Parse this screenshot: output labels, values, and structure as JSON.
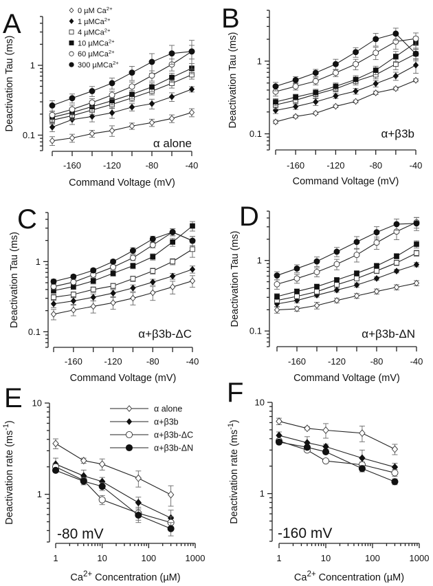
{
  "figure": {
    "panels_order": [
      "A",
      "B",
      "C",
      "D",
      "E",
      "F"
    ]
  },
  "legend_tau": {
    "entries": [
      {
        "key": "0",
        "marker": "open-diamond",
        "label": "0 µM Ca",
        "sup": "2+"
      },
      {
        "key": "1",
        "marker": "filled-diamond",
        "label": "1 µMCa",
        "sup": "2+"
      },
      {
        "key": "4",
        "marker": "open-square",
        "label": "4 µMCa",
        "sup": "2+"
      },
      {
        "key": "10",
        "marker": "filled-square",
        "label": "10 µMCa",
        "sup": "2+"
      },
      {
        "key": "60",
        "marker": "open-circle",
        "label": "60 µMCa",
        "sup": "2+"
      },
      {
        "key": "300",
        "marker": "filled-circle",
        "label": "300 µMCa",
        "sup": "2+"
      }
    ]
  },
  "legend_rate": {
    "entries": [
      {
        "key": "alpha",
        "marker": "open-diamond",
        "label": "α alone"
      },
      {
        "key": "b3b",
        "marker": "filled-diamond",
        "label": "α+β3b"
      },
      {
        "key": "dC",
        "marker": "open-circle",
        "label": "α+β3b-ΔC"
      },
      {
        "key": "dN",
        "marker": "filled-circle",
        "label": "α+β3b-ΔN"
      }
    ]
  },
  "chart_data": [
    {
      "panel": "A",
      "type": "line",
      "annotation": "α alone",
      "xlabel": "Command Voltage (mV)",
      "ylabel": "Deactivation Tau (ms)",
      "xscale": "linear",
      "yscale": "log",
      "xlim": [
        -180,
        -40
      ],
      "ylim": [
        0.06,
        5
      ],
      "xticks": [
        -160,
        -120,
        -80,
        -40
      ],
      "xminor": [
        -180,
        -140,
        -100,
        -60
      ],
      "yticks": [
        0.1,
        1
      ],
      "grid": false,
      "legend": "top-left",
      "x": [
        -180,
        -160,
        -140,
        -120,
        -100,
        -80,
        -60,
        -40
      ],
      "series": [
        {
          "name": "0 µM Ca2+",
          "marker": "open-diamond",
          "values": [
            0.083,
            0.091,
            0.105,
            0.116,
            0.135,
            0.151,
            0.173,
            0.211
          ],
          "err": [
            0.012,
            0.012,
            0.012,
            0.02,
            0.014,
            0.018,
            0.022,
            0.028
          ]
        },
        {
          "name": "1 µM Ca2+",
          "marker": "filled-diamond",
          "values": [
            0.13,
            0.167,
            0.185,
            0.209,
            0.252,
            0.282,
            0.354,
            0.454
          ],
          "err": [
            0.018,
            0.025,
            0.03,
            0.035,
            0.03,
            0.045,
            0.05,
            0.04
          ]
        },
        {
          "name": "4 µM Ca2+",
          "marker": "open-square",
          "values": [
            0.164,
            0.19,
            0.229,
            0.276,
            0.341,
            0.427,
            0.552,
            0.734
          ],
          "err": [
            0.02,
            0.025,
            0.03,
            0.035,
            0.04,
            0.05,
            0.08,
            0.1
          ]
        },
        {
          "name": "10 µM Ca2+",
          "marker": "filled-square",
          "values": [
            0.18,
            0.211,
            0.256,
            0.311,
            0.385,
            0.49,
            0.671,
            0.907
          ],
          "err": [
            0.025,
            0.03,
            0.035,
            0.04,
            0.05,
            0.07,
            0.1,
            0.15
          ]
        },
        {
          "name": "60 µM Ca2+",
          "marker": "open-circle",
          "values": [
            0.194,
            0.234,
            0.293,
            0.376,
            0.497,
            0.713,
            1.03,
            1.58
          ],
          "err": [
            0.025,
            0.035,
            0.04,
            0.05,
            0.08,
            0.12,
            0.2,
            0.35
          ]
        },
        {
          "name": "300 µM Ca2+",
          "marker": "filled-circle",
          "values": [
            0.266,
            0.338,
            0.427,
            0.556,
            0.786,
            1.12,
            1.48,
            1.58
          ],
          "err": [
            0.045,
            0.05,
            0.07,
            0.1,
            0.18,
            0.35,
            0.45,
            0.7
          ]
        }
      ]
    },
    {
      "panel": "B",
      "type": "line",
      "annotation": "α+β3b",
      "xlabel": "Command Voltage (mV)",
      "ylabel": "Deactivation Tau (ms)",
      "xscale": "linear",
      "yscale": "log",
      "xlim": [
        -180,
        -40
      ],
      "ylim": [
        0.06,
        5
      ],
      "xticks": [
        -160,
        -120,
        -80,
        -40
      ],
      "xminor": [
        -180,
        -140,
        -100,
        -60
      ],
      "yticks": [
        0.1,
        1
      ],
      "grid": false,
      "x": [
        -180,
        -160,
        -140,
        -120,
        -100,
        -80,
        -60,
        -40
      ],
      "series": [
        {
          "name": "0 µM Ca2+",
          "marker": "open-diamond",
          "values": [
            0.146,
            0.173,
            0.192,
            0.239,
            0.279,
            0.366,
            0.419,
            0.545
          ],
          "err": [
            0.008,
            0.008,
            0.008,
            0.01,
            0.012,
            0.02,
            0.02,
            0.025
          ]
        },
        {
          "name": "1 µM Ca2+",
          "marker": "filled-diamond",
          "values": [
            0.21,
            0.237,
            0.275,
            0.332,
            0.386,
            0.49,
            0.624,
            0.88
          ],
          "err": [
            0.02,
            0.02,
            0.03,
            0.025,
            0.035,
            0.05,
            0.08,
            0.2
          ]
        },
        {
          "name": "4 µM Ca2+",
          "marker": "open-square",
          "values": [
            0.25,
            0.29,
            0.35,
            0.416,
            0.53,
            0.65,
            0.91,
            1.26
          ],
          "err": [
            0.03,
            0.03,
            0.04,
            0.04,
            0.06,
            0.08,
            0.15,
            0.2
          ]
        },
        {
          "name": "10 µM Ca2+",
          "marker": "filled-square",
          "values": [
            0.275,
            0.32,
            0.37,
            0.45,
            0.56,
            0.75,
            1.16,
            1.8
          ],
          "err": [
            0.03,
            0.03,
            0.04,
            0.05,
            0.07,
            0.1,
            0.2,
            0.35
          ]
        },
        {
          "name": "60 µM Ca2+",
          "marker": "open-circle",
          "values": [
            0.38,
            0.45,
            0.53,
            0.69,
            0.91,
            1.3,
            1.86,
            2.04
          ],
          "err": [
            0.05,
            0.05,
            0.06,
            0.08,
            0.15,
            0.25,
            0.4,
            0.4
          ]
        },
        {
          "name": "300 µM Ca2+",
          "marker": "filled-circle",
          "values": [
            0.45,
            0.55,
            0.69,
            0.91,
            1.33,
            2.01,
            2.39,
            1.26
          ],
          "err": [
            0.06,
            0.06,
            0.08,
            0.15,
            0.2,
            0.4,
            0.45,
            0.25
          ]
        }
      ]
    },
    {
      "panel": "C",
      "type": "line",
      "annotation": "α+β3b-ΔC",
      "xlabel": "Command Voltage (mV)",
      "ylabel": "Deactivation Tau (ms)",
      "xscale": "linear",
      "yscale": "log",
      "xlim": [
        -180,
        -40
      ],
      "ylim": [
        0.06,
        5
      ],
      "xticks": [
        -160,
        -120,
        -80,
        -40
      ],
      "xminor": [
        -180,
        -140,
        -100,
        -60
      ],
      "yticks": [
        0.1,
        1
      ],
      "grid": false,
      "x": [
        -180,
        -160,
        -140,
        -120,
        -100,
        -80,
        -60,
        -40
      ],
      "series": [
        {
          "name": "0 µM Ca2+",
          "marker": "open-diamond",
          "values": [
            0.178,
            0.204,
            0.23,
            0.259,
            0.301,
            0.36,
            0.435,
            0.53
          ],
          "err": [
            0.03,
            0.035,
            0.045,
            0.05,
            0.06,
            0.08,
            0.09,
            0.1
          ]
        },
        {
          "name": "1 µM Ca2+",
          "marker": "filled-diamond",
          "values": [
            0.25,
            0.275,
            0.31,
            0.355,
            0.42,
            0.51,
            0.62,
            0.775
          ],
          "err": [
            0.03,
            0.03,
            0.035,
            0.04,
            0.045,
            0.05,
            0.06,
            0.09
          ]
        },
        {
          "name": "4 µM Ca2+",
          "marker": "open-square",
          "values": [
            0.31,
            0.34,
            0.4,
            0.45,
            0.57,
            0.735,
            1.0,
            1.5
          ],
          "err": [
            0.03,
            0.03,
            0.035,
            0.04,
            0.05,
            0.07,
            0.1,
            0.35
          ]
        },
        {
          "name": "10 µM Ca2+",
          "marker": "filled-square",
          "values": [
            0.385,
            0.44,
            0.53,
            0.68,
            0.87,
            1.17,
            1.9,
            3.22
          ],
          "err": [
            0.03,
            0.04,
            0.05,
            0.06,
            0.08,
            0.12,
            0.25,
            0.5
          ]
        },
        {
          "name": "60 µM Ca2+",
          "marker": "open-circle",
          "values": [
            0.44,
            0.51,
            0.65,
            0.835,
            1.13,
            1.72,
            2.63,
            1.98
          ],
          "err": [
            0.04,
            0.04,
            0.05,
            0.06,
            0.1,
            0.15,
            0.3,
            0.3
          ]
        },
        {
          "name": "300 µM Ca2+",
          "marker": "filled-circle",
          "values": [
            0.52,
            0.61,
            0.75,
            1.0,
            1.43,
            2.1,
            2.63,
            1.98
          ],
          "err": [
            0.04,
            0.04,
            0.05,
            0.06,
            0.15,
            0.2,
            0.3,
            0.3
          ]
        }
      ]
    },
    {
      "panel": "D",
      "type": "line",
      "annotation": "α+β3b-ΔN",
      "xlabel": "Command Voltage (mV)",
      "ylabel": "Deactivation Tau (ms)",
      "xscale": "linear",
      "yscale": "log",
      "xlim": [
        -180,
        -40
      ],
      "ylim": [
        0.06,
        5
      ],
      "xticks": [
        -160,
        -120,
        -80,
        -40
      ],
      "xminor": [
        -180,
        -140,
        -100,
        -60
      ],
      "yticks": [
        0.1,
        1
      ],
      "grid": false,
      "x": [
        -180,
        -160,
        -140,
        -120,
        -100,
        -80,
        -60,
        -40
      ],
      "series": [
        {
          "name": "0 µM Ca2+",
          "marker": "open-diamond",
          "values": [
            0.199,
            0.206,
            0.23,
            0.271,
            0.315,
            0.364,
            0.417,
            0.477
          ],
          "err": [
            0.02,
            0.015,
            0.025,
            0.02,
            0.025,
            0.03,
            0.035,
            0.04
          ]
        },
        {
          "name": "1 µM Ca2+",
          "marker": "filled-diamond",
          "values": [
            0.242,
            0.271,
            0.322,
            0.38,
            0.449,
            0.555,
            0.707,
            0.873
          ],
          "err": [
            0.02,
            0.02,
            0.02,
            0.025,
            0.03,
            0.03,
            0.04,
            0.06
          ]
        },
        {
          "name": "4 µM Ca2+",
          "marker": "open-square",
          "values": [
            0.271,
            0.31,
            0.361,
            0.453,
            0.555,
            0.712,
            0.927,
            1.27
          ],
          "err": [
            0.02,
            0.02,
            0.03,
            0.03,
            0.04,
            0.06,
            0.08,
            0.12
          ]
        },
        {
          "name": "10 µM Ca2+",
          "marker": "filled-square",
          "values": [
            0.308,
            0.364,
            0.426,
            0.53,
            0.66,
            0.84,
            1.15,
            1.7
          ],
          "err": [
            0.03,
            0.03,
            0.035,
            0.04,
            0.05,
            0.07,
            0.1,
            0.2
          ]
        },
        {
          "name": "60 µM Ca2+",
          "marker": "open-circle",
          "values": [
            0.46,
            0.555,
            0.685,
            0.887,
            1.2,
            1.79,
            2.57,
            3.47
          ],
          "err": [
            0.07,
            0.08,
            0.1,
            0.15,
            0.25,
            0.35,
            0.6,
            0.6
          ]
        },
        {
          "name": "300 µM Ca2+",
          "marker": "filled-circle",
          "values": [
            0.612,
            0.768,
            0.97,
            1.33,
            1.83,
            2.51,
            3.27,
            3.35
          ],
          "err": [
            0.08,
            0.1,
            0.15,
            0.2,
            0.35,
            0.5,
            0.6,
            0.7
          ]
        }
      ]
    },
    {
      "panel": "E",
      "type": "line",
      "annotation": "-80 mV",
      "xlabel": "Ca2+ Concentration (µM)",
      "ylabel": "Deactivation rate (ms-1)",
      "xscale": "log",
      "yscale": "log",
      "xlim": [
        1,
        1000
      ],
      "ylim": [
        0.3,
        10
      ],
      "xticks": [
        1,
        10,
        100,
        1000
      ],
      "yticks": [
        1,
        10
      ],
      "grid": false,
      "legend": "top-right",
      "x": [
        1,
        4,
        10,
        60,
        300
      ],
      "series": [
        {
          "name": "α alone",
          "marker": "open-diamond",
          "values": [
            3.6,
            2.34,
            2.14,
            1.5,
            0.99
          ],
          "err": [
            0.45,
            0.15,
            0.3,
            0.3,
            0.25
          ]
        },
        {
          "name": "α+β3b",
          "marker": "filled-diamond",
          "values": [
            2.14,
            1.59,
            1.38,
            0.81,
            0.55
          ],
          "err": [
            0.35,
            0.25,
            0.15,
            0.12,
            0.12
          ]
        },
        {
          "name": "α+β3b-ΔC",
          "marker": "open-circle",
          "values": [
            2.0,
            1.42,
            0.87,
            0.62,
            0.49
          ],
          "err": [
            0.15,
            0.1,
            0.1,
            0.1,
            0.08
          ]
        },
        {
          "name": "α+β3b-ΔN",
          "marker": "filled-circle",
          "values": [
            1.83,
            1.39,
            1.22,
            0.59,
            0.42
          ],
          "err": [
            0.1,
            0.12,
            0.12,
            0.1,
            0.07
          ]
        }
      ]
    },
    {
      "panel": "F",
      "type": "line",
      "annotation": "-160 mV",
      "xlabel": "Ca2+ Concentration (µM)",
      "ylabel": "Deactivation rate (ms-1)",
      "xscale": "log",
      "yscale": "log",
      "xlim": [
        1,
        1000
      ],
      "ylim": [
        0.3,
        10
      ],
      "xticks": [
        1,
        10,
        100,
        1000
      ],
      "yticks": [
        1,
        10
      ],
      "grid": false,
      "x": [
        1,
        4,
        10,
        60,
        300
      ],
      "series": [
        {
          "name": "α alone",
          "marker": "open-diamond",
          "values": [
            6.2,
            5.19,
            4.95,
            4.6,
            3.07
          ],
          "err": [
            0.5,
            0.2,
            0.9,
            0.9,
            0.4
          ]
        },
        {
          "name": "α+β3b",
          "marker": "filled-diamond",
          "values": [
            4.34,
            3.61,
            3.27,
            2.45,
            1.95
          ],
          "err": [
            0.4,
            0.6,
            0.2,
            0.55,
            0.2
          ]
        },
        {
          "name": "α+β3b-ΔC",
          "marker": "open-circle",
          "values": [
            3.78,
            3.0,
            2.28,
            2.07,
            1.69
          ],
          "err": [
            0.2,
            0.1,
            0.1,
            0.15,
            0.15
          ]
        },
        {
          "name": "α+β3b-ΔN",
          "marker": "filled-circle",
          "values": [
            3.67,
            3.22,
            2.87,
            1.88,
            1.35
          ],
          "err": [
            0.2,
            0.15,
            0.15,
            0.15,
            0.1
          ]
        }
      ]
    }
  ]
}
